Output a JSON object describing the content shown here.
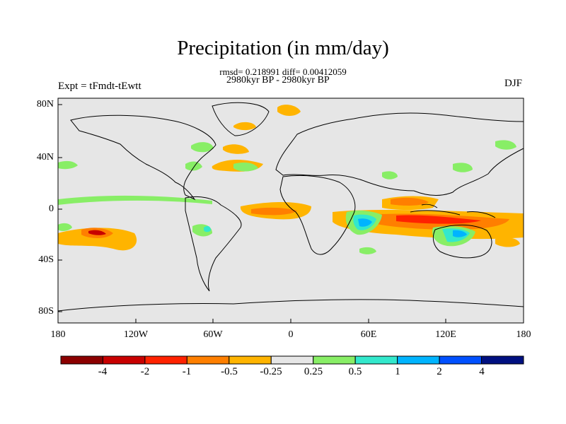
{
  "figure": {
    "title": "Precipitation (in mm/day)",
    "stats": "rmsd= 0.218991 diff= 0.00412059",
    "period": "2980kyr BP - 2980kyr BP",
    "expt": "Expt = tFmdt-tEwtt",
    "season": "DJF"
  },
  "axes": {
    "lon_ticks": [
      "180",
      "120W",
      "60W",
      "0",
      "60E",
      "120E",
      "180"
    ],
    "lat_ticks": [
      "80N",
      "40N",
      "0",
      "40S",
      "80S"
    ],
    "lon_range": [
      -180,
      180
    ],
    "lat_range": [
      -90,
      90
    ]
  },
  "colorbar": {
    "colors": [
      "#8b0000",
      "#c80000",
      "#ff2200",
      "#ff7f00",
      "#ffb400",
      "#e6e6e6",
      "#88ee66",
      "#33e8cc",
      "#00b4ff",
      "#0050ff",
      "#001080"
    ],
    "labels": [
      "-4",
      "-2",
      "-1",
      "-0.5",
      "-0.25",
      "0.25",
      "0.5",
      "1",
      "2",
      "4"
    ]
  },
  "map": {
    "background_color": "#e6e6e6",
    "coast_color": "#000000"
  }
}
